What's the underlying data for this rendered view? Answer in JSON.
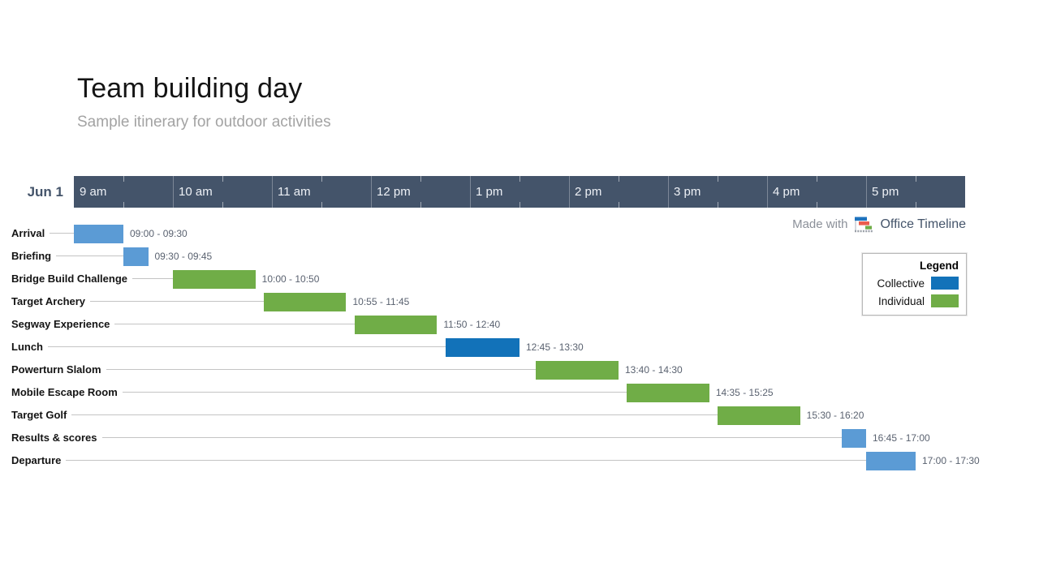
{
  "header": {
    "title": "Team building day",
    "subtitle": "Sample itinerary for outdoor activities"
  },
  "footer": {
    "made_with": "Made with",
    "brand": "Office Timeline"
  },
  "legend": {
    "title": "Legend",
    "items": [
      {
        "label": "Collective",
        "category": "collective"
      },
      {
        "label": "Individual",
        "category": "individual"
      }
    ]
  },
  "chart_data": {
    "type": "bar",
    "subtype": "gantt-timeline",
    "title": "Team building day",
    "date_label": "Jun 1",
    "time_axis": {
      "start": "09:00",
      "end": "18:00",
      "hour_tick_labels": [
        "9 am",
        "10 am",
        "11 am",
        "12 pm",
        "1 pm",
        "2 pm",
        "3 pm",
        "4 pm",
        "5 pm"
      ]
    },
    "colors": {
      "collective": "#1272b9",
      "individual": "#70ad47",
      "default": "#5b9bd5",
      "axis_band": "#44546a"
    },
    "tasks": [
      {
        "name": "Arrival",
        "start": "09:00",
        "end": "09:30",
        "time_label": "09:00 - 09:30",
        "category": "default"
      },
      {
        "name": "Briefing",
        "start": "09:30",
        "end": "09:45",
        "time_label": "09:30 - 09:45",
        "category": "default"
      },
      {
        "name": "Bridge Build Challenge",
        "start": "10:00",
        "end": "10:50",
        "time_label": "10:00 - 10:50",
        "category": "individual"
      },
      {
        "name": "Target Archery",
        "start": "10:55",
        "end": "11:45",
        "time_label": "10:55 - 11:45",
        "category": "individual"
      },
      {
        "name": "Segway Experience",
        "start": "11:50",
        "end": "12:40",
        "time_label": "11:50 - 12:40",
        "category": "individual"
      },
      {
        "name": "Lunch",
        "start": "12:45",
        "end": "13:30",
        "time_label": "12:45 - 13:30",
        "category": "collective"
      },
      {
        "name": "Powerturn Slalom",
        "start": "13:40",
        "end": "14:30",
        "time_label": "13:40 - 14:30",
        "category": "individual"
      },
      {
        "name": "Mobile Escape Room",
        "start": "14:35",
        "end": "15:25",
        "time_label": "14:35 - 15:25",
        "category": "individual"
      },
      {
        "name": "Target Golf",
        "start": "15:30",
        "end": "16:20",
        "time_label": "15:30 - 16:20",
        "category": "individual"
      },
      {
        "name": "Results & scores",
        "start": "16:45",
        "end": "17:00",
        "time_label": "16:45 - 17:00",
        "category": "default"
      },
      {
        "name": "Departure",
        "start": "17:00",
        "end": "17:30",
        "time_label": "17:00 - 17:30",
        "category": "default"
      }
    ]
  }
}
